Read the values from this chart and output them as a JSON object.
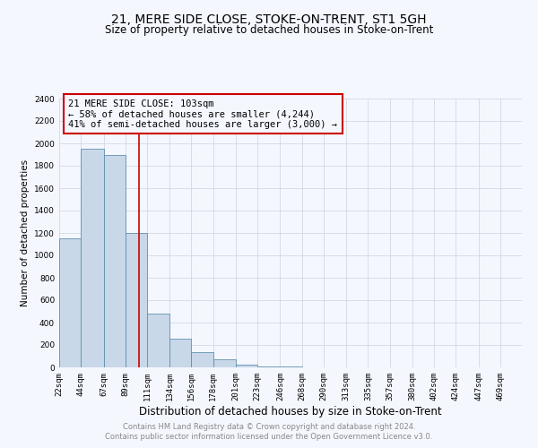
{
  "title": "21, MERE SIDE CLOSE, STOKE-ON-TRENT, ST1 5GH",
  "subtitle": "Size of property relative to detached houses in Stoke-on-Trent",
  "xlabel": "Distribution of detached houses by size in Stoke-on-Trent",
  "ylabel": "Number of detached properties",
  "annotation_line1": "21 MERE SIDE CLOSE: 103sqm",
  "annotation_line2": "← 58% of detached houses are smaller (4,244)",
  "annotation_line3": "41% of semi-detached houses are larger (3,000) →",
  "property_size": 103,
  "bar_left_edges": [
    22,
    44,
    67,
    89,
    111,
    134,
    156,
    178,
    201,
    223,
    246,
    268,
    290,
    313,
    335,
    357,
    380,
    402,
    424,
    447
  ],
  "bar_widths": [
    22,
    23,
    22,
    22,
    23,
    22,
    22,
    23,
    22,
    23,
    22,
    22,
    23,
    22,
    22,
    23,
    22,
    22,
    23,
    22
  ],
  "bar_heights": [
    1150,
    1950,
    1900,
    1200,
    480,
    260,
    140,
    70,
    25,
    12,
    6,
    4,
    2,
    2,
    1,
    1,
    1,
    0,
    0,
    0
  ],
  "bar_color": "#c8d8e8",
  "bar_edge_color": "#6090b0",
  "red_line_x": 103,
  "ylim": [
    0,
    2400
  ],
  "yticks": [
    0,
    200,
    400,
    600,
    800,
    1000,
    1200,
    1400,
    1600,
    1800,
    2000,
    2200,
    2400
  ],
  "xtick_labels": [
    "22sqm",
    "44sqm",
    "67sqm",
    "89sqm",
    "111sqm",
    "134sqm",
    "156sqm",
    "178sqm",
    "201sqm",
    "223sqm",
    "246sqm",
    "268sqm",
    "290sqm",
    "313sqm",
    "335sqm",
    "357sqm",
    "380sqm",
    "402sqm",
    "424sqm",
    "447sqm",
    "469sqm"
  ],
  "xtick_positions": [
    22,
    44,
    67,
    89,
    111,
    134,
    156,
    178,
    201,
    223,
    246,
    268,
    290,
    313,
    335,
    357,
    380,
    402,
    424,
    447,
    469
  ],
  "grid_color": "#d0d8e4",
  "annotation_box_color": "#cc0000",
  "footnote_line1": "Contains HM Land Registry data © Crown copyright and database right 2024.",
  "footnote_line2": "Contains public sector information licensed under the Open Government Licence v3.0.",
  "background_color": "#f5f7ff",
  "title_fontsize": 10,
  "subtitle_fontsize": 8.5,
  "xlabel_fontsize": 8.5,
  "ylabel_fontsize": 7.5,
  "tick_fontsize": 6.5,
  "annotation_fontsize": 7.5,
  "footnote_fontsize": 6
}
